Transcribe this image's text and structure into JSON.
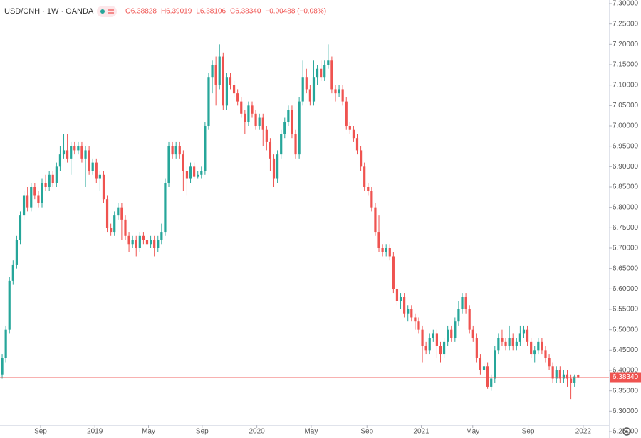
{
  "chart_data": {
    "type": "candlestick",
    "title": "USD/CNH · 1W · OANDA",
    "legend_ohlc": [
      "O6.38828",
      "H6.39019",
      "L6.38106",
      "C6.38340",
      "−0.00488 (−0.08%)"
    ],
    "last_price_label": "6.38340",
    "up_color": "#26a69a",
    "down_color": "#ef5350",
    "open": [
      6.39,
      6.43,
      6.5,
      6.62,
      6.66,
      6.72,
      6.78,
      6.83,
      6.8,
      6.85,
      6.83,
      6.81,
      6.86,
      6.85,
      6.88,
      6.86,
      6.9,
      6.93,
      6.94,
      6.92,
      6.95,
      6.94,
      6.95,
      6.92,
      6.94,
      6.89,
      6.91,
      6.87,
      6.88,
      6.82,
      6.75,
      6.74,
      6.78,
      6.8,
      6.77,
      6.73,
      6.71,
      6.72,
      6.7,
      6.73,
      6.72,
      6.71,
      6.72,
      6.7,
      6.72,
      6.74,
      6.86,
      6.95,
      6.93,
      6.95,
      6.93,
      6.89,
      6.87,
      6.9,
      6.875,
      6.88,
      6.89,
      7.0,
      7.12,
      7.15,
      7.1,
      7.17,
      7.05,
      7.12,
      7.1,
      7.08,
      7.06,
      7.03,
      7.01,
      7.05,
      7.03,
      7.0,
      7.02,
      6.99,
      6.96,
      6.92,
      6.87,
      6.93,
      6.98,
      7.01,
      7.04,
      6.98,
      6.93,
      7.06,
      7.12,
      7.09,
      7.06,
      7.12,
      7.14,
      7.12,
      7.15,
      7.16,
      7.09,
      7.08,
      7.09,
      7.06,
      7.0,
      6.99,
      6.97,
      6.94,
      6.9,
      6.85,
      6.84,
      6.8,
      6.74,
      6.7,
      6.69,
      6.7,
      6.68,
      6.6,
      6.57,
      6.58,
      6.54,
      6.55,
      6.53,
      6.52,
      6.5,
      6.46,
      6.45,
      6.48,
      6.49,
      6.46,
      6.44,
      6.47,
      6.5,
      6.48,
      6.52,
      6.55,
      6.58,
      6.55,
      6.5,
      6.48,
      6.43,
      6.4,
      6.41,
      6.36,
      6.38,
      6.45,
      6.48,
      6.47,
      6.46,
      6.48,
      6.46,
      6.47,
      6.49,
      6.5,
      6.47,
      6.44,
      6.45,
      6.47,
      6.45,
      6.43,
      6.41,
      6.38,
      6.4,
      6.38,
      6.39,
      6.38,
      6.37,
      6.38828
    ],
    "high": [
      6.44,
      6.51,
      6.63,
      6.67,
      6.73,
      6.79,
      6.84,
      6.85,
      6.86,
      6.86,
      6.84,
      6.87,
      6.88,
      6.89,
      6.89,
      6.91,
      6.95,
      6.98,
      6.98,
      6.96,
      6.96,
      6.96,
      6.96,
      6.95,
      6.95,
      6.92,
      6.92,
      6.89,
      6.89,
      6.83,
      6.76,
      6.79,
      6.81,
      6.81,
      6.78,
      6.74,
      6.73,
      6.73,
      6.74,
      6.74,
      6.73,
      6.73,
      6.73,
      6.73,
      6.76,
      6.87,
      6.96,
      6.96,
      6.96,
      6.96,
      6.94,
      6.9,
      6.91,
      6.91,
      6.89,
      6.9,
      7.01,
      7.13,
      7.16,
      7.17,
      7.2,
      7.18,
      7.13,
      7.13,
      7.11,
      7.09,
      7.07,
      7.04,
      7.06,
      7.06,
      7.04,
      7.03,
      7.03,
      7.0,
      6.97,
      6.93,
      6.94,
      6.99,
      7.02,
      7.05,
      7.05,
      6.99,
      7.07,
      7.16,
      7.14,
      7.1,
      7.16,
      7.15,
      7.16,
      7.16,
      7.2,
      7.17,
      7.1,
      7.1,
      7.1,
      7.07,
      7.01,
      7.0,
      6.98,
      6.95,
      6.91,
      6.86,
      6.85,
      6.81,
      6.78,
      6.71,
      6.71,
      6.71,
      6.69,
      6.61,
      6.59,
      6.59,
      6.56,
      6.56,
      6.54,
      6.53,
      6.51,
      6.47,
      6.49,
      6.5,
      6.5,
      6.47,
      6.48,
      6.51,
      6.51,
      6.53,
      6.57,
      6.59,
      6.59,
      6.56,
      6.51,
      6.49,
      6.44,
      6.42,
      6.42,
      6.39,
      6.46,
      6.49,
      6.5,
      6.48,
      6.51,
      6.49,
      6.48,
      6.51,
      6.51,
      6.51,
      6.48,
      6.46,
      6.48,
      6.48,
      6.46,
      6.44,
      6.42,
      6.41,
      6.41,
      6.4,
      6.4,
      6.39,
      6.39,
      6.39019
    ],
    "low": [
      6.38,
      6.42,
      6.49,
      6.61,
      6.65,
      6.71,
      6.77,
      6.79,
      6.79,
      6.82,
      6.8,
      6.8,
      6.84,
      6.84,
      6.85,
      6.85,
      6.89,
      6.92,
      6.91,
      6.88,
      6.93,
      6.93,
      6.91,
      6.85,
      6.88,
      6.88,
      6.86,
      6.84,
      6.81,
      6.74,
      6.73,
      6.73,
      6.77,
      6.72,
      6.72,
      6.69,
      6.7,
      6.68,
      6.69,
      6.71,
      6.68,
      6.7,
      6.68,
      6.69,
      6.71,
      6.73,
      6.85,
      6.92,
      6.92,
      6.92,
      6.84,
      6.83,
      6.86,
      6.87,
      6.87,
      6.87,
      6.88,
      6.99,
      7.08,
      7.05,
      7.09,
      7.04,
      7.04,
      7.09,
      7.07,
      7.05,
      7.02,
      6.98,
      7.0,
      7.02,
      6.99,
      6.99,
      6.95,
      6.94,
      6.89,
      6.85,
      6.86,
      6.92,
      6.97,
      7.0,
      6.97,
      6.92,
      6.92,
      7.05,
      7.08,
      7.05,
      7.05,
      7.1,
      7.11,
      7.11,
      7.14,
      7.08,
      7.06,
      7.07,
      7.05,
      6.99,
      6.98,
      6.96,
      6.93,
      6.89,
      6.84,
      6.83,
      6.79,
      6.73,
      6.69,
      6.68,
      6.68,
      6.67,
      6.59,
      6.56,
      6.55,
      6.53,
      6.52,
      6.52,
      6.5,
      6.49,
      6.42,
      6.44,
      6.44,
      6.47,
      6.43,
      6.42,
      6.43,
      6.46,
      6.47,
      6.47,
      6.51,
      6.54,
      6.54,
      6.49,
      6.47,
      6.42,
      6.39,
      6.39,
      6.355,
      6.35,
      6.37,
      6.44,
      6.46,
      6.45,
      6.45,
      6.45,
      6.45,
      6.46,
      6.48,
      6.46,
      6.43,
      6.42,
      6.44,
      6.44,
      6.42,
      6.4,
      6.37,
      6.37,
      6.37,
      6.37,
      6.36,
      6.33,
      6.36,
      6.38106
    ],
    "close": [
      6.43,
      6.5,
      6.62,
      6.66,
      6.72,
      6.78,
      6.83,
      6.8,
      6.85,
      6.83,
      6.81,
      6.86,
      6.85,
      6.88,
      6.86,
      6.9,
      6.93,
      6.94,
      6.92,
      6.95,
      6.94,
      6.95,
      6.92,
      6.94,
      6.89,
      6.91,
      6.87,
      6.88,
      6.82,
      6.75,
      6.74,
      6.78,
      6.8,
      6.77,
      6.73,
      6.71,
      6.72,
      6.7,
      6.73,
      6.72,
      6.71,
      6.72,
      6.7,
      6.72,
      6.74,
      6.86,
      6.95,
      6.93,
      6.95,
      6.93,
      6.89,
      6.87,
      6.9,
      6.875,
      6.88,
      6.89,
      7.0,
      7.12,
      7.15,
      7.1,
      7.17,
      7.05,
      7.12,
      7.1,
      7.08,
      7.06,
      7.03,
      7.01,
      7.05,
      7.03,
      7.0,
      7.02,
      6.99,
      6.96,
      6.92,
      6.87,
      6.93,
      6.98,
      7.01,
      7.04,
      6.98,
      6.93,
      7.06,
      7.12,
      7.09,
      7.06,
      7.12,
      7.14,
      7.12,
      7.15,
      7.16,
      7.09,
      7.08,
      7.09,
      7.06,
      7.0,
      6.99,
      6.97,
      6.94,
      6.9,
      6.85,
      6.84,
      6.8,
      6.74,
      6.7,
      6.69,
      6.7,
      6.68,
      6.6,
      6.57,
      6.58,
      6.54,
      6.55,
      6.53,
      6.52,
      6.5,
      6.46,
      6.45,
      6.48,
      6.49,
      6.46,
      6.44,
      6.47,
      6.5,
      6.48,
      6.52,
      6.55,
      6.58,
      6.55,
      6.5,
      6.48,
      6.43,
      6.4,
      6.41,
      6.36,
      6.38,
      6.45,
      6.48,
      6.47,
      6.46,
      6.48,
      6.46,
      6.47,
      6.49,
      6.5,
      6.47,
      6.44,
      6.45,
      6.47,
      6.45,
      6.43,
      6.41,
      6.38,
      6.4,
      6.38,
      6.39,
      6.38,
      6.37,
      6.385,
      6.3834
    ],
    "xlim": [
      -0.6,
      167.5
    ],
    "xticks": [
      {
        "value": 10.6,
        "label": "Sep"
      },
      {
        "value": 25.6,
        "label": "2019"
      },
      {
        "value": 40.4,
        "label": "May"
      },
      {
        "value": 55.2,
        "label": "Sep"
      },
      {
        "value": 70.3,
        "label": "2020"
      },
      {
        "value": 85.3,
        "label": "May"
      },
      {
        "value": 100.7,
        "label": "Sep"
      },
      {
        "value": 115.7,
        "label": "2021"
      },
      {
        "value": 129.9,
        "label": "May"
      },
      {
        "value": 145.2,
        "label": "Sep"
      },
      {
        "value": 160.4,
        "label": "2022"
      }
    ],
    "ylim": [
      6.25,
      7.3
    ],
    "yticks": [
      {
        "value": 6.25,
        "label": "6.25000"
      },
      {
        "value": 6.3,
        "label": "6.30000"
      },
      {
        "value": 6.35,
        "label": "6.35000"
      },
      {
        "value": 6.4,
        "label": "6.40000"
      },
      {
        "value": 6.45,
        "label": "6.45000"
      },
      {
        "value": 6.5,
        "label": "6.50000"
      },
      {
        "value": 6.55,
        "label": "6.55000"
      },
      {
        "value": 6.6,
        "label": "6.60000"
      },
      {
        "value": 6.65,
        "label": "6.65000"
      },
      {
        "value": 6.7,
        "label": "6.70000"
      },
      {
        "value": 6.75,
        "label": "6.75000"
      },
      {
        "value": 6.8,
        "label": "6.80000"
      },
      {
        "value": 6.85,
        "label": "6.85000"
      },
      {
        "value": 6.9,
        "label": "6.90000"
      },
      {
        "value": 6.95,
        "label": "6.95000"
      },
      {
        "value": 7.0,
        "label": "7.00000"
      },
      {
        "value": 7.05,
        "label": "7.05000"
      },
      {
        "value": 7.1,
        "label": "7.10000"
      },
      {
        "value": 7.15,
        "label": "7.15000"
      },
      {
        "value": 7.2,
        "label": "7.20000"
      },
      {
        "value": 7.25,
        "label": "7.25000"
      },
      {
        "value": 7.3,
        "label": "7.30000"
      }
    ]
  }
}
